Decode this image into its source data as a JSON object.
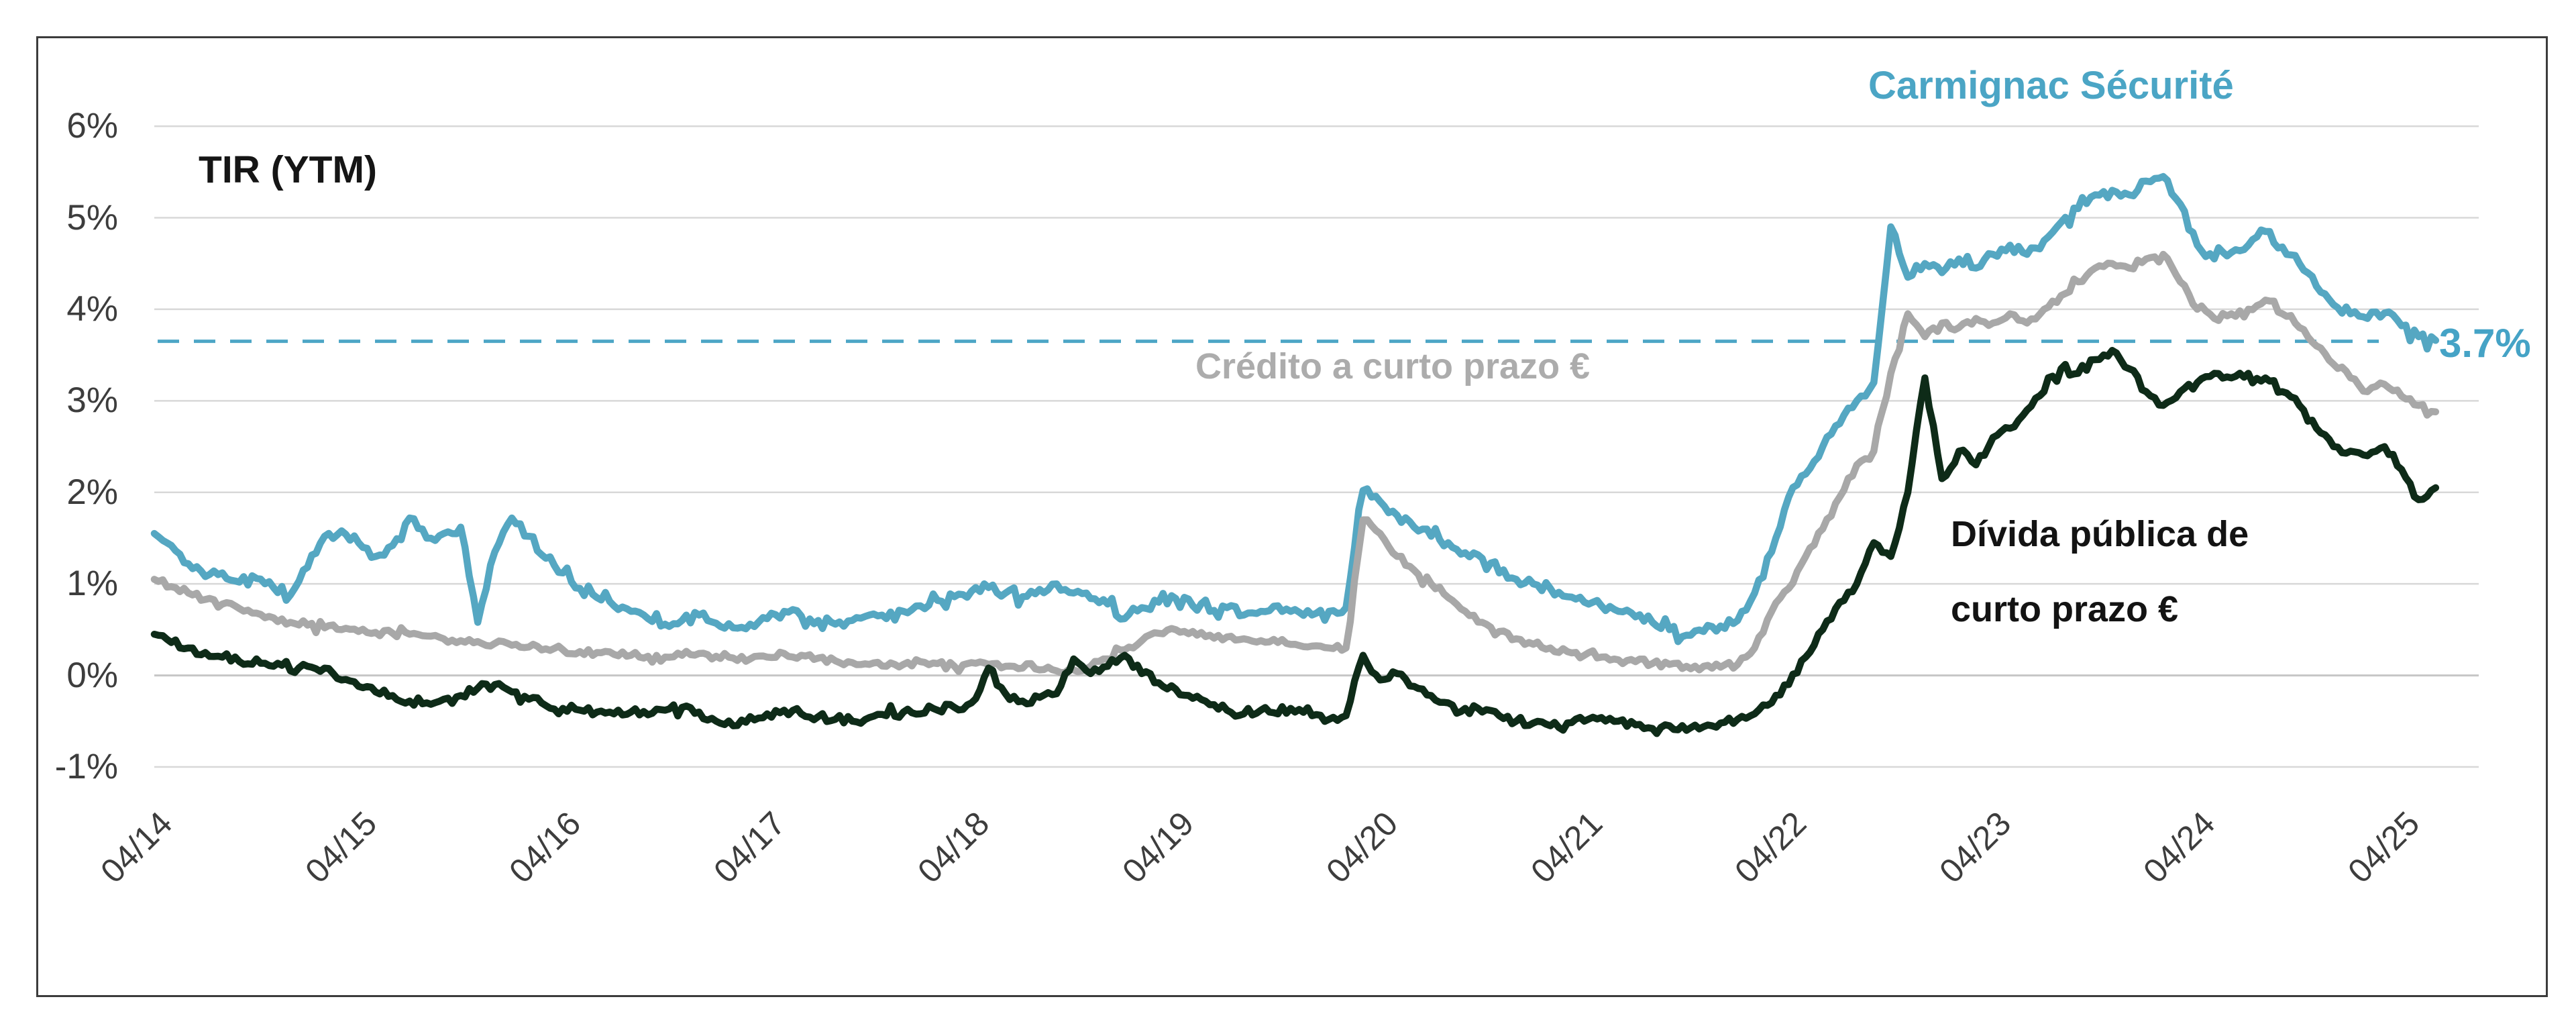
{
  "labels": {
    "title": "TIR (YTM)",
    "series_blue": "Carmignac Sécurité",
    "series_gray": "Crédito a curto prazo €",
    "series_dark_line1": "Dívida pública de",
    "series_dark_line2": "curto prazo €",
    "reference_value": "3.7%"
  },
  "colors": {
    "blue": "#55a7c2",
    "gray": "#a8a8a8",
    "dark_green": "#0e2b18",
    "reference": "#4da6c6",
    "gridline": "#d8d8d8",
    "zero_gridline": "#c6c6c6",
    "axis_text": "#3d3d3d",
    "frame": "#3c3c3c"
  },
  "chart_data": {
    "type": "line",
    "title": "TIR (YTM)",
    "x_unit": "months since 04/14",
    "x_tick_labels": [
      "04/14",
      "04/15",
      "04/16",
      "04/17",
      "04/18",
      "04/19",
      "04/20",
      "04/21",
      "04/22",
      "04/23",
      "04/24",
      "04/25"
    ],
    "y_tick_labels": [
      "6%",
      "5%",
      "4%",
      "3%",
      "2%",
      "1%",
      "0%",
      "-1%"
    ],
    "ylim": [
      -1,
      6
    ],
    "grid": "horizontal",
    "legend_position": "inline-annotations",
    "reference_line": {
      "value": 3.65,
      "label": "3.7%",
      "style": "dashed",
      "color": "#4da6c6"
    },
    "series": [
      {
        "name": "Carmignac Sécurité",
        "color": "#55a7c2",
        "values": [
          1.55,
          1.42,
          1.22,
          1.08,
          1.12,
          1.02,
          1.06,
          0.96,
          0.88,
          1.18,
          1.52,
          1.58,
          1.45,
          1.3,
          1.42,
          1.72,
          1.5,
          1.55,
          1.62,
          0.58,
          1.35,
          1.72,
          1.52,
          1.28,
          1.12,
          0.95,
          0.85,
          0.76,
          0.7,
          0.62,
          0.56,
          0.6,
          0.66,
          0.57,
          0.52,
          0.56,
          0.62,
          0.7,
          0.65,
          0.6,
          0.56,
          0.6,
          0.66,
          0.62,
          0.7,
          0.76,
          0.82,
          0.86,
          0.92,
          0.96,
          0.9,
          0.86,
          0.94,
          1.0,
          0.9,
          0.84,
          0.78,
          0.62,
          0.74,
          0.8,
          0.84,
          0.76,
          0.7,
          0.74,
          0.66,
          0.7,
          0.76,
          0.72,
          0.66,
          0.7,
          0.74,
          2.02,
          1.9,
          1.75,
          1.62,
          1.52,
          1.45,
          1.34,
          1.28,
          1.12,
          1.05,
          1.0,
          0.95,
          0.86,
          0.8,
          0.76,
          0.7,
          0.64,
          0.58,
          0.5,
          0.44,
          0.48,
          0.54,
          0.6,
          0.9,
          1.35,
          1.95,
          2.2,
          2.5,
          2.75,
          3.0,
          3.2,
          4.9,
          4.35,
          4.5,
          4.4,
          4.55,
          4.45,
          4.6,
          4.7,
          4.6,
          4.75,
          4.95,
          5.1,
          5.25,
          5.3,
          5.25,
          5.4,
          5.45,
          5.15,
          4.7,
          4.55,
          4.62,
          4.7,
          4.85,
          4.68,
          4.5,
          4.25,
          4.05,
          3.95,
          3.9,
          3.96,
          3.82,
          3.7,
          3.66
        ]
      },
      {
        "name": "Crédito a curto prazo €",
        "color": "#a8a8a8",
        "values": [
          1.05,
          0.97,
          0.9,
          0.83,
          0.78,
          0.73,
          0.68,
          0.63,
          0.58,
          0.55,
          0.52,
          0.5,
          0.48,
          0.47,
          0.46,
          0.45,
          0.43,
          0.4,
          0.38,
          0.37,
          0.35,
          0.33,
          0.31,
          0.29,
          0.28,
          0.26,
          0.25,
          0.23,
          0.22,
          0.21,
          0.2,
          0.22,
          0.24,
          0.21,
          0.19,
          0.18,
          0.2,
          0.24,
          0.22,
          0.19,
          0.16,
          0.14,
          0.12,
          0.1,
          0.12,
          0.15,
          0.13,
          0.1,
          0.14,
          0.12,
          0.1,
          0.08,
          0.06,
          0.05,
          0.06,
          0.1,
          0.18,
          0.28,
          0.38,
          0.46,
          0.5,
          0.48,
          0.44,
          0.42,
          0.4,
          0.38,
          0.36,
          0.34,
          0.32,
          0.3,
          0.3,
          1.7,
          1.55,
          1.3,
          1.15,
          1.0,
          0.85,
          0.7,
          0.58,
          0.48,
          0.4,
          0.34,
          0.3,
          0.26,
          0.22,
          0.2,
          0.17,
          0.15,
          0.13,
          0.12,
          0.1,
          0.1,
          0.09,
          0.12,
          0.3,
          0.7,
          0.95,
          1.3,
          1.6,
          1.95,
          2.3,
          2.45,
          3.3,
          3.95,
          3.7,
          3.85,
          3.8,
          3.9,
          3.85,
          3.95,
          3.85,
          4.0,
          4.15,
          4.3,
          4.45,
          4.5,
          4.45,
          4.55,
          4.6,
          4.3,
          4.0,
          3.9,
          3.95,
          4.0,
          4.1,
          3.95,
          3.8,
          3.6,
          3.4,
          3.25,
          3.1,
          3.18,
          3.05,
          2.95,
          2.88
        ]
      },
      {
        "name": "Dívida pública de curto prazo €",
        "color": "#0e2b18",
        "values": [
          0.45,
          0.36,
          0.3,
          0.25,
          0.2,
          0.15,
          0.18,
          0.1,
          0.05,
          0.1,
          0.08,
          -0.05,
          -0.12,
          -0.18,
          -0.22,
          -0.28,
          -0.3,
          -0.26,
          -0.22,
          -0.14,
          -0.1,
          -0.18,
          -0.26,
          -0.33,
          -0.36,
          -0.38,
          -0.4,
          -0.42,
          -0.4,
          -0.43,
          -0.38,
          -0.35,
          -0.4,
          -0.5,
          -0.55,
          -0.45,
          -0.42,
          -0.38,
          -0.42,
          -0.45,
          -0.48,
          -0.5,
          -0.46,
          -0.44,
          -0.4,
          -0.42,
          -0.38,
          -0.35,
          -0.3,
          0.08,
          -0.2,
          -0.28,
          -0.24,
          -0.2,
          0.18,
          0.02,
          0.1,
          0.22,
          0.02,
          -0.08,
          -0.15,
          -0.25,
          -0.32,
          -0.38,
          -0.42,
          -0.38,
          -0.42,
          -0.4,
          -0.44,
          -0.48,
          -0.44,
          0.22,
          -0.05,
          0.02,
          -0.12,
          -0.22,
          -0.3,
          -0.36,
          -0.4,
          -0.44,
          -0.5,
          -0.52,
          -0.55,
          -0.52,
          -0.5,
          -0.46,
          -0.5,
          -0.54,
          -0.58,
          -0.55,
          -0.6,
          -0.56,
          -0.52,
          -0.48,
          -0.42,
          -0.3,
          -0.1,
          0.2,
          0.5,
          0.8,
          1.0,
          1.45,
          1.3,
          2.0,
          3.25,
          2.15,
          2.45,
          2.3,
          2.6,
          2.7,
          2.9,
          3.1,
          3.35,
          3.3,
          3.45,
          3.55,
          3.35,
          3.1,
          2.95,
          3.1,
          3.2,
          3.3,
          3.25,
          3.3,
          3.25,
          3.1,
          2.95,
          2.7,
          2.5,
          2.45,
          2.4,
          2.5,
          2.25,
          1.92,
          2.05
        ]
      }
    ]
  }
}
